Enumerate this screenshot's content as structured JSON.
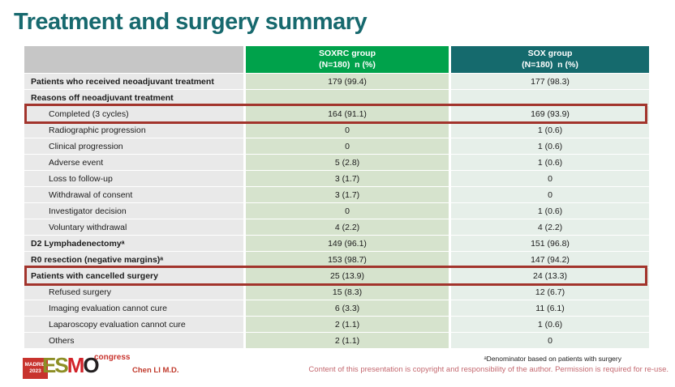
{
  "slide": {
    "title": "Treatment and surgery summary"
  },
  "table": {
    "columns": [
      {
        "name": "",
        "sub": ""
      },
      {
        "name": "SOXRC group",
        "sub": "(N=180)  n (%)"
      },
      {
        "name": "SOX group",
        "sub": "(N=180)  n (%)"
      }
    ],
    "rows": [
      {
        "label": "Patients who received neoadjuvant treatment",
        "soxrc": "179 (99.4)",
        "sox": "177 (98.3)",
        "style": "section",
        "highlight": false
      },
      {
        "label": "Reasons off neoadjuvant treatment",
        "soxrc": "",
        "sox": "",
        "style": "section",
        "highlight": false
      },
      {
        "label": "Completed (3 cycles)",
        "soxrc": "164 (91.1)",
        "sox": "169 (93.9)",
        "style": "sub",
        "highlight": true
      },
      {
        "label": "Radiographic progression",
        "soxrc": "0",
        "sox": "1 (0.6)",
        "style": "sub",
        "highlight": false
      },
      {
        "label": "Clinical progression",
        "soxrc": "0",
        "sox": "1 (0.6)",
        "style": "sub",
        "highlight": false
      },
      {
        "label": "Adverse event",
        "soxrc": "5 (2.8)",
        "sox": "1 (0.6)",
        "style": "sub",
        "highlight": false
      },
      {
        "label": "Loss to follow-up",
        "soxrc": "3 (1.7)",
        "sox": "0",
        "style": "sub",
        "highlight": false
      },
      {
        "label": "Withdrawal of consent",
        "soxrc": "3 (1.7)",
        "sox": "0",
        "style": "sub",
        "highlight": false
      },
      {
        "label": "Investigator decision",
        "soxrc": "0",
        "sox": "1 (0.6)",
        "style": "sub",
        "highlight": false
      },
      {
        "label": "Voluntary withdrawal",
        "soxrc": "4 (2.2)",
        "sox": "4 (2.2)",
        "style": "sub",
        "highlight": false
      },
      {
        "label": "D2 Lymphadenectomyᵃ",
        "soxrc": "149 (96.1)",
        "sox": "151 (96.8)",
        "style": "section",
        "highlight": false
      },
      {
        "label": "R0 resection (negative margins)ᵃ",
        "soxrc": "153 (98.7)",
        "sox": "147 (94.2)",
        "style": "section",
        "highlight": false
      },
      {
        "label": "Patients with cancelled surgery",
        "soxrc": "25 (13.9)",
        "sox": "24 (13.3)",
        "style": "section",
        "highlight": true
      },
      {
        "label": "Refused surgery",
        "soxrc": "15 (8.3)",
        "sox": "12 (6.7)",
        "style": "sub",
        "highlight": false
      },
      {
        "label": "Imaging evaluation cannot cure",
        "soxrc": "6 (3.3)",
        "sox": "11 (6.1)",
        "style": "sub",
        "highlight": false
      },
      {
        "label": "Laparoscopy evaluation cannot cure",
        "soxrc": "2 (1.1)",
        "sox": "1 (0.6)",
        "style": "sub",
        "highlight": false
      },
      {
        "label": "Others",
        "soxrc": "2 (1.1)",
        "sox": "0",
        "style": "sub",
        "highlight": false
      }
    ]
  },
  "footer": {
    "footnote": "ᵃDenominator based on patients with surgery",
    "copyright": "Content of this presentation is copyright and responsibility of the author. Permission is required for re-use.",
    "author": "Chen LI M.D.",
    "logo": {
      "badge_line1": "MADRID",
      "badge_line2": "2023",
      "letters": [
        "E",
        "S",
        "M",
        "O"
      ],
      "congress": "congress"
    }
  },
  "colors": {
    "title_teal": "#17696e",
    "header_green": "#00a24b",
    "header_teal": "#156a6d",
    "label_cell_gray": "#e9e9e9",
    "header_label_gray": "#c6c6c6",
    "soxrc_cell_green": "#d6e3cd",
    "sox_cell_green": "#e6efe9",
    "highlight_border_red": "#a2342c",
    "logo_red": "#c8332d",
    "logo_olive": "#8d8e25",
    "copyright_rose": "#c4686f"
  }
}
